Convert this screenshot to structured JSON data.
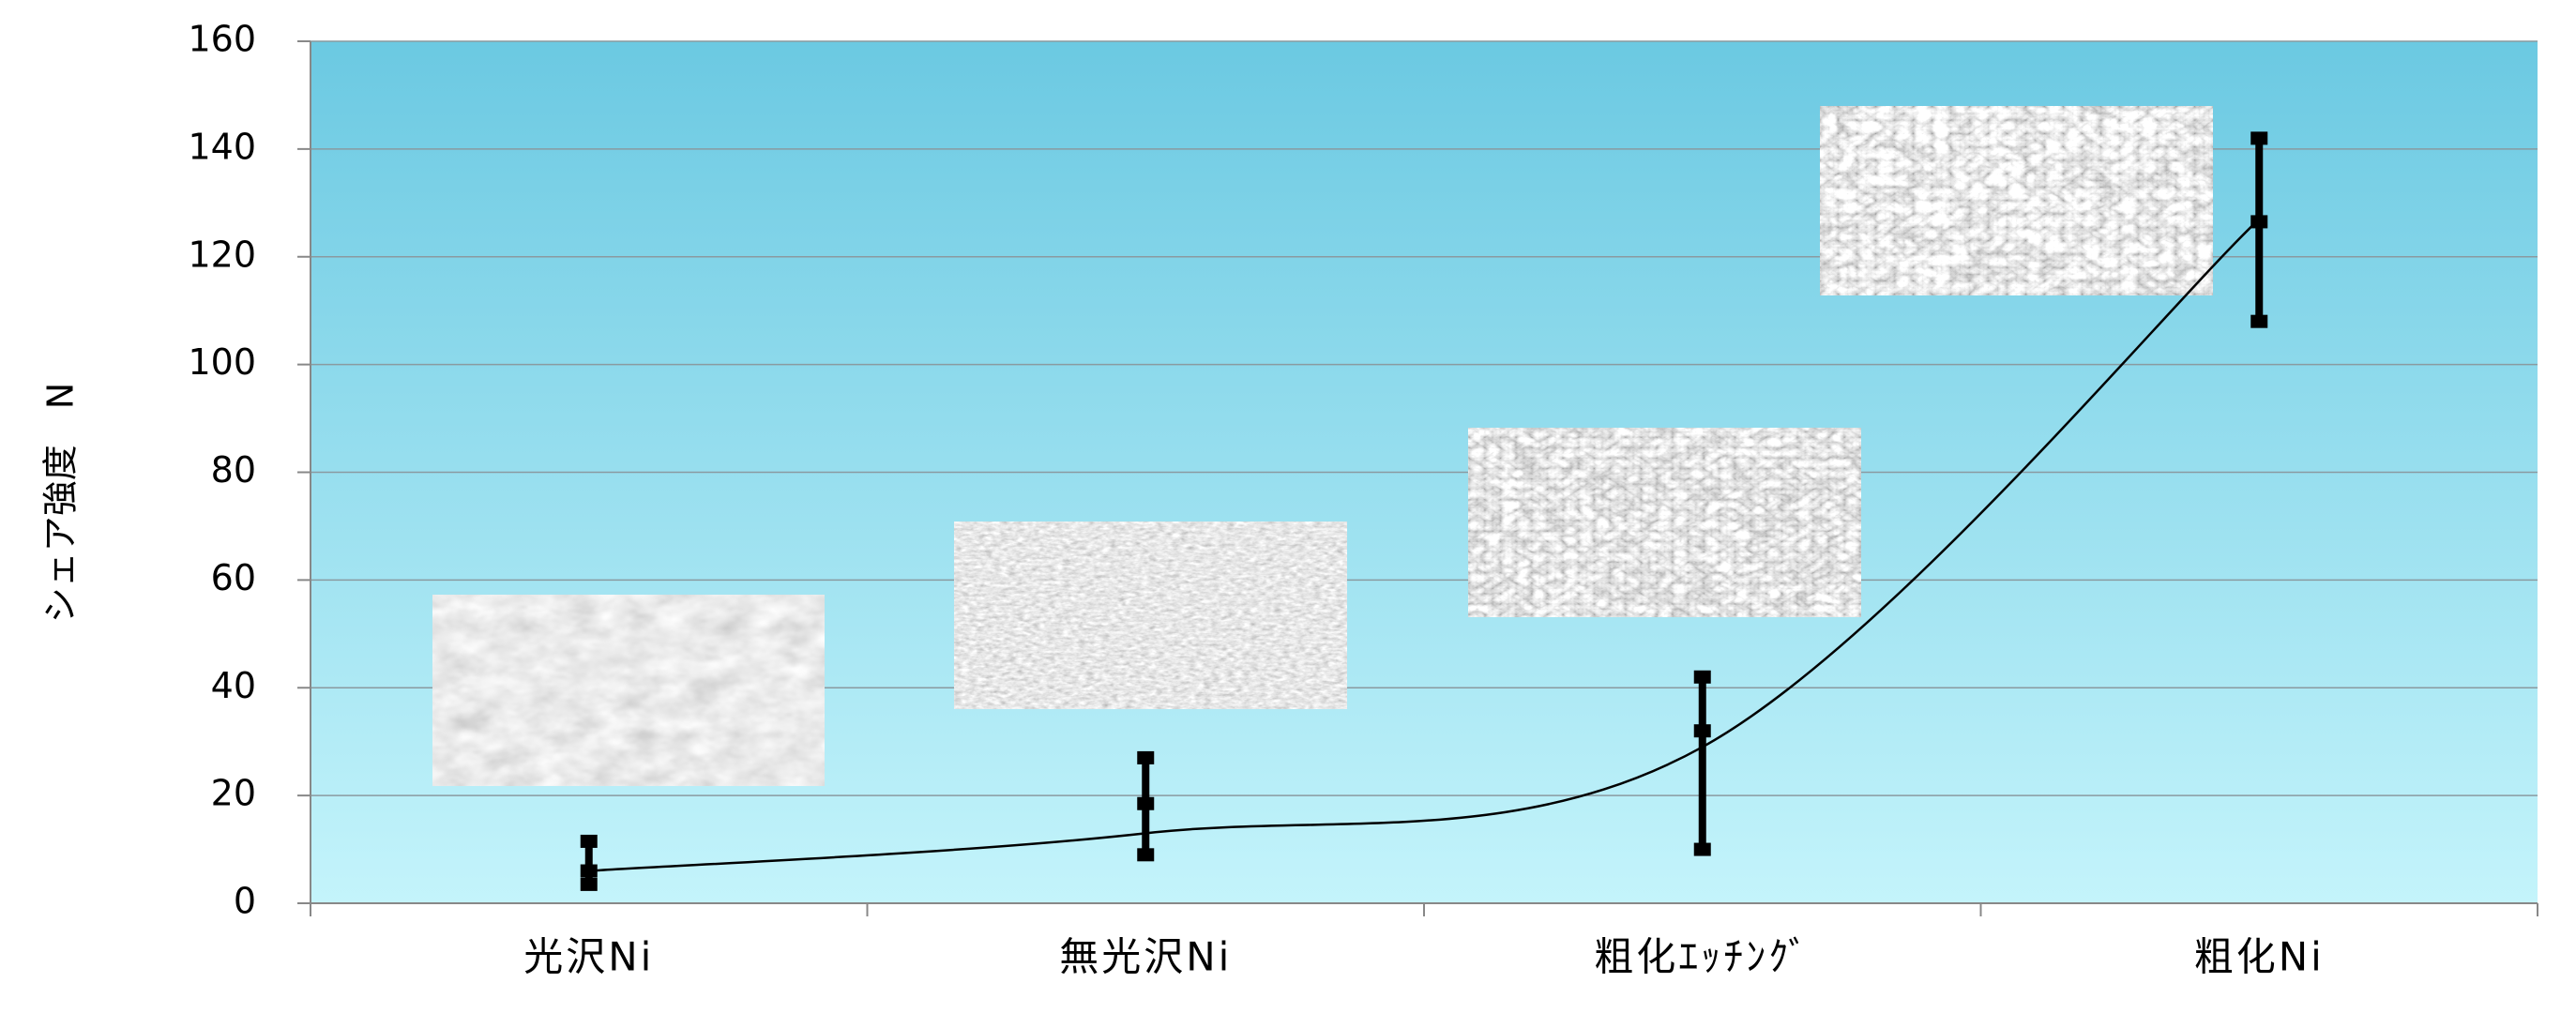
{
  "chart_data": {
    "type": "errorbar",
    "y_label": "シェア強度　N",
    "categories": [
      "光沢Ni",
      "無光沢Ni",
      "粗化ｴｯﾁﾝｸﾞ",
      "粗化Ni"
    ],
    "values": [
      6,
      18.5,
      32,
      126.5
    ],
    "lower": [
      3.5,
      9,
      10,
      108
    ],
    "upper": [
      11.5,
      27,
      42,
      142
    ],
    "trend": [
      6,
      13,
      29,
      127
    ],
    "color": "#000000",
    "ylim": [
      0,
      160
    ],
    "yticks": [
      0,
      20,
      40,
      60,
      80,
      100,
      120,
      140,
      160
    ],
    "grid": true
  }
}
